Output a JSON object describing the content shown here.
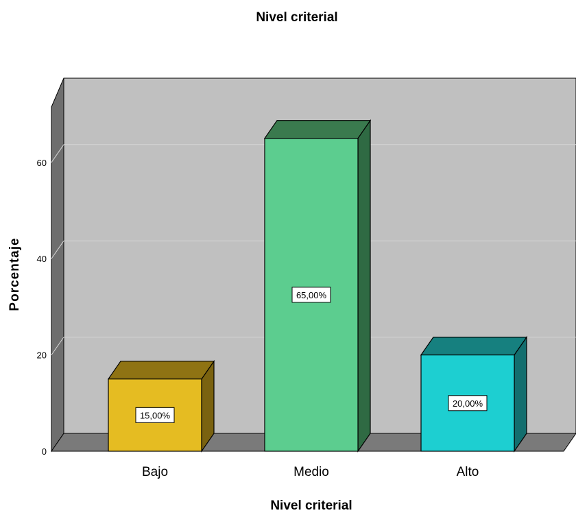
{
  "chart_data": {
    "type": "bar",
    "title": "Nivel criterial",
    "xlabel": "Nivel criterial",
    "ylabel": "Porcentaje",
    "categories": [
      "Bajo",
      "Medio",
      "Alto"
    ],
    "values": [
      15,
      65,
      20
    ],
    "data_labels": [
      "15,00%",
      "65,00%",
      "20,00%"
    ],
    "ylim": [
      0,
      72
    ],
    "yticks": [
      0,
      20,
      40,
      60
    ],
    "grid": true,
    "legend": "none",
    "style": "3d",
    "colors": {
      "bars": [
        {
          "front": "#e5bc22",
          "top": "#8f7313",
          "side": "#7a6210"
        },
        {
          "front": "#5ccd8f",
          "top": "#3a7a4e",
          "side": "#2f6a43"
        },
        {
          "front": "#1dcfd1",
          "top": "#16807f",
          "side": "#136e6e"
        }
      ],
      "back_wall": "#c0c0c0",
      "left_wall": "#6e6e6e",
      "floor": "#7a7a7a",
      "gridline": "#d6d6d6"
    }
  }
}
